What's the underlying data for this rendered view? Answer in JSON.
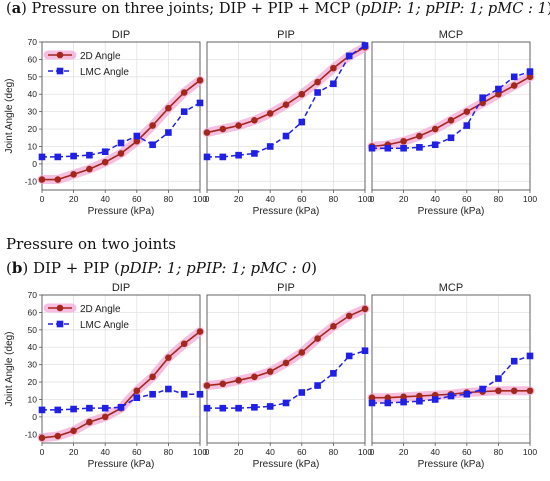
{
  "headings": {
    "a_label": "a",
    "a_text": "Pressure on three joints; DIP + PIP + MCP (",
    "a_math": "pDIP: 1;  pPIP: 1;  pMC  : 1",
    "two_joints": "Pressure on two joints",
    "b_label": "b",
    "b_text": "DIP + PIP (",
    "b_math": "pDIP: 1;  pPIP: 1;  pMC  : 0",
    "close_paren": ")"
  },
  "legend": {
    "series_2d": "2D Angle",
    "series_lmc": "LMC Angle"
  },
  "colors": {
    "angle_2d": "#a4271e",
    "angle_2d_halo": "#f3a9d6",
    "lmc": "#1f1fe6",
    "grid": "#e3e3e3"
  },
  "chart_data": [
    {
      "type": "line",
      "row": "a",
      "panel": "DIP",
      "title": "DIP",
      "xlabel": "Pressure (kPa)",
      "ylabel": "Joint Angle (deg)",
      "xlim": [
        0,
        100
      ],
      "ylim": [
        -15,
        70
      ],
      "xticks": [
        0,
        20,
        40,
        60,
        80,
        100
      ],
      "yticks": [
        -10,
        0,
        10,
        20,
        30,
        40,
        50,
        60,
        70
      ],
      "x": [
        0,
        10,
        20,
        30,
        40,
        50,
        60,
        70,
        80,
        90,
        100
      ],
      "legend": "top-left",
      "series": [
        {
          "name": "2D Angle",
          "values": [
            -9,
            -9,
            -6,
            -3,
            1,
            6,
            13,
            22,
            32,
            41,
            48
          ]
        },
        {
          "name": "LMC Angle",
          "values": [
            4,
            4,
            4.5,
            5,
            7,
            12,
            16,
            11,
            18,
            30,
            35
          ]
        }
      ]
    },
    {
      "type": "line",
      "row": "a",
      "panel": "PIP",
      "title": "PIP",
      "xlabel": "Pressure (kPa)",
      "ylabel": "",
      "xlim": [
        0,
        100
      ],
      "ylim": [
        -15,
        70
      ],
      "xticks": [
        0,
        20,
        40,
        60,
        80,
        100
      ],
      "x": [
        0,
        10,
        20,
        30,
        40,
        50,
        60,
        70,
        80,
        90,
        100
      ],
      "series": [
        {
          "name": "2D Angle",
          "values": [
            18,
            20,
            22,
            25,
            29,
            34,
            40,
            47,
            55,
            62,
            67
          ]
        },
        {
          "name": "LMC Angle",
          "values": [
            4,
            4,
            5,
            6,
            10,
            16,
            24,
            41,
            46,
            62,
            68
          ]
        }
      ]
    },
    {
      "type": "line",
      "row": "a",
      "panel": "MCP",
      "title": "MCP",
      "xlabel": "Pressure (kPa)",
      "ylabel": "",
      "xlim": [
        0,
        100
      ],
      "ylim": [
        -15,
        70
      ],
      "xticks": [
        0,
        20,
        40,
        60,
        80,
        100
      ],
      "x": [
        0,
        10,
        20,
        30,
        40,
        50,
        60,
        70,
        80,
        90,
        100
      ],
      "series": [
        {
          "name": "2D Angle",
          "values": [
            10,
            11,
            13,
            16,
            20,
            25,
            30,
            35,
            40,
            45,
            50
          ]
        },
        {
          "name": "LMC Angle",
          "values": [
            9,
            9,
            9,
            9.5,
            11,
            15,
            22,
            38,
            43,
            50,
            53
          ]
        }
      ]
    },
    {
      "type": "line",
      "row": "b",
      "panel": "DIP",
      "title": "DIP",
      "xlabel": "Pressure (kPa)",
      "ylabel": "Joint Angle (deg)",
      "xlim": [
        0,
        100
      ],
      "ylim": [
        -15,
        70
      ],
      "xticks": [
        0,
        20,
        40,
        60,
        80,
        100
      ],
      "yticks": [
        -10,
        0,
        10,
        20,
        30,
        40,
        50,
        60,
        70
      ],
      "x": [
        0,
        10,
        20,
        30,
        40,
        50,
        60,
        70,
        80,
        90,
        100
      ],
      "legend": "top-left",
      "series": [
        {
          "name": "2D Angle",
          "values": [
            -12,
            -11,
            -8,
            -3,
            0,
            5,
            15,
            23,
            34,
            42,
            49
          ]
        },
        {
          "name": "LMC Angle",
          "values": [
            4,
            4,
            4.5,
            5,
            5,
            5.5,
            11,
            13,
            16,
            13,
            13
          ]
        }
      ]
    },
    {
      "type": "line",
      "row": "b",
      "panel": "PIP",
      "title": "PIP",
      "xlabel": "Pressure (kPa)",
      "ylabel": "",
      "xlim": [
        0,
        100
      ],
      "ylim": [
        -15,
        70
      ],
      "xticks": [
        0,
        20,
        40,
        60,
        80,
        100
      ],
      "x": [
        0,
        10,
        20,
        30,
        40,
        50,
        60,
        70,
        80,
        90,
        100
      ],
      "series": [
        {
          "name": "2D Angle",
          "values": [
            18,
            19,
            21,
            23,
            26,
            31,
            37,
            45,
            52,
            58,
            62
          ]
        },
        {
          "name": "LMC Angle",
          "values": [
            5,
            5,
            5,
            5.5,
            6,
            8,
            14,
            18,
            25,
            35,
            38
          ]
        }
      ]
    },
    {
      "type": "line",
      "row": "b",
      "panel": "MCP",
      "title": "MCP",
      "xlabel": "Pressure (kPa)",
      "ylabel": "",
      "xlim": [
        0,
        100
      ],
      "ylim": [
        -15,
        70
      ],
      "xticks": [
        0,
        20,
        40,
        60,
        80,
        100
      ],
      "x": [
        0,
        10,
        20,
        30,
        40,
        50,
        60,
        70,
        80,
        90,
        100
      ],
      "series": [
        {
          "name": "2D Angle",
          "values": [
            11,
            11,
            11.5,
            12,
            12.5,
            13,
            14,
            14.5,
            15,
            15,
            15
          ]
        },
        {
          "name": "LMC Angle",
          "values": [
            8,
            8,
            8.5,
            9,
            10,
            12,
            13,
            16,
            22,
            32,
            35
          ]
        }
      ]
    }
  ]
}
